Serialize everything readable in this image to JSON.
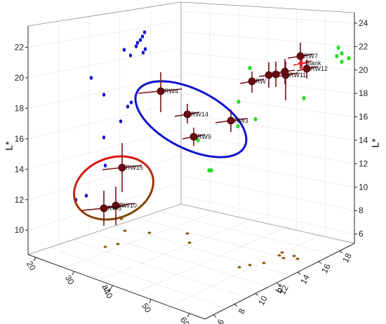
{
  "chart_data": {
    "type": "scatter",
    "projection": "3d",
    "title": "",
    "axes": {
      "y_left": {
        "label": "L*",
        "ticks": [
          10,
          12,
          14,
          16,
          18,
          20,
          22
        ]
      },
      "y_right": {
        "label": "L*",
        "ticks": [
          6,
          8,
          10,
          12,
          14,
          16,
          18,
          20,
          22,
          24
        ]
      },
      "a": {
        "label": "a*",
        "ticks": [
          20,
          30,
          40,
          50,
          60
        ]
      },
      "b": {
        "label": "b*",
        "ticks": [
          6,
          8,
          10,
          12,
          14,
          16,
          18
        ]
      }
    },
    "grid": true,
    "labeled_samples": [
      {
        "name": "RW4"
      },
      {
        "name": "RW14"
      },
      {
        "name": "RW9"
      },
      {
        "name": "RW3"
      },
      {
        "name": "RW15"
      },
      {
        "name": "RW10"
      },
      {
        "name": "RW5"
      },
      {
        "name": "RW"
      },
      {
        "name": "RW7"
      },
      {
        "name": "Blank"
      },
      {
        "name": "RW11"
      },
      {
        "name": "RW12"
      }
    ],
    "groups": [
      {
        "color": "#e01010",
        "description": "ellipse around RW15, RW10, RW5"
      },
      {
        "color": "#1010cc",
        "description": "ellipse around RW4, RW14, RW9, RW3"
      }
    ],
    "projections": [
      {
        "plane": "L*-a* wall",
        "color": "#1010cc"
      },
      {
        "plane": "L*-b* wall",
        "color": "#22dd22"
      },
      {
        "plane": "a*-b* floor",
        "color": "#8b5a00"
      }
    ],
    "colors": {
      "sample": "#6b0a10",
      "errorbar": "#7a0f1a",
      "blank": "#ff1a1a"
    }
  }
}
